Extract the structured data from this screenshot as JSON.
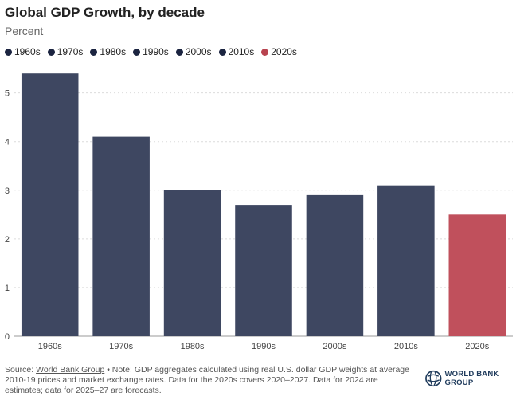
{
  "title": "Global GDP Growth, by decade",
  "subtitle": "Percent",
  "legend": [
    {
      "label": "1960s",
      "color": "#1b2440"
    },
    {
      "label": "1970s",
      "color": "#1b2440"
    },
    {
      "label": "1980s",
      "color": "#1b2440"
    },
    {
      "label": "1990s",
      "color": "#1b2440"
    },
    {
      "label": "2000s",
      "color": "#1b2440"
    },
    {
      "label": "2010s",
      "color": "#1b2440"
    },
    {
      "label": "2020s",
      "color": "#b8434f"
    }
  ],
  "chart_data": {
    "type": "bar",
    "title": "Global GDP Growth, by decade",
    "ylabel": "Percent",
    "xlabel": "",
    "categories": [
      "1960s",
      "1970s",
      "1980s",
      "1990s",
      "2000s",
      "2010s",
      "2020s"
    ],
    "values": [
      5.4,
      4.1,
      3.0,
      2.7,
      2.9,
      3.1,
      2.5
    ],
    "colors": [
      "#3e4761",
      "#3e4761",
      "#3e4761",
      "#3e4761",
      "#3e4761",
      "#3e4761",
      "#c0505c"
    ],
    "ylim": [
      0,
      5.6
    ],
    "yticks": [
      "0",
      "1",
      "2",
      "3",
      "4",
      "5"
    ],
    "grid": true,
    "legend_position": "top-left"
  },
  "footer": {
    "source_prefix": "Source: ",
    "source_link": "World Bank Group",
    "note": " • Note: GDP aggregates calculated using real U.S. dollar GDP weights at average 2010-19 prices and market exchange rates. Data for the 2020s covers 2020–2027. Data for 2024 are estimates; data for 2025–27 are forecasts."
  },
  "logo": {
    "text": "WORLD BANK GROUP",
    "icon": "globe-icon"
  }
}
